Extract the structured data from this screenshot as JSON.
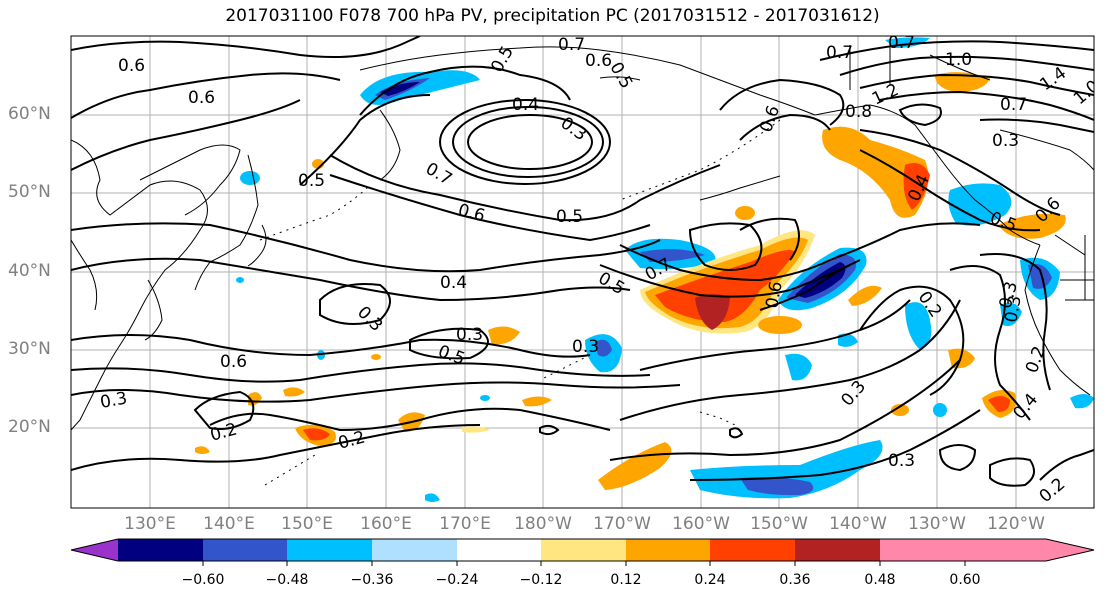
{
  "title": "2017031100 F078 700 hPa PV, precipitation PC (2017031512 - 2017031612)",
  "lat_labels": [
    "60°N",
    "50°N",
    "40°N",
    "30°N",
    "20°N"
  ],
  "lon_labels": [
    "130°E",
    "140°E",
    "150°E",
    "160°E",
    "170°E",
    "180°W",
    "170°W",
    "160°W",
    "150°W",
    "140°W",
    "130°W",
    "120°W"
  ],
  "contour_labels": [
    "0.6",
    "0.6",
    "0.5",
    "0.7",
    "0.6",
    "0.5",
    "0.4",
    "0.3",
    "0.7",
    "0.6",
    "0.5",
    "0.5",
    "0.7",
    "0.8",
    "0.7",
    "0.6",
    "1.0",
    "1.2",
    "1.4",
    "1.0",
    "0.7",
    "0.3",
    "0.4",
    "0.5",
    "0.6",
    "0.7",
    "0.4",
    "0.5",
    "0.6",
    "0.3",
    "0.3",
    "0.3",
    "0.6",
    "0.5",
    "0.3",
    "0.2",
    "0.2",
    "0.3",
    "0.2",
    "0.3",
    "0.2",
    "0.3",
    "0.4",
    "0.3",
    "0.2"
  ],
  "colorbar": {
    "tick_labels": [
      "−0.60",
      "−0.48",
      "−0.36",
      "−0.24",
      "−0.12",
      "0.12",
      "0.24",
      "0.36",
      "0.48",
      "0.60"
    ],
    "colors": [
      "#9933cc",
      "#000080",
      "#3355cc",
      "#00bfff",
      "#b0e0ff",
      "#ffffff",
      "#ffe680",
      "#ffa500",
      "#ff4000",
      "#b22222",
      "#ff88aa"
    ]
  }
}
